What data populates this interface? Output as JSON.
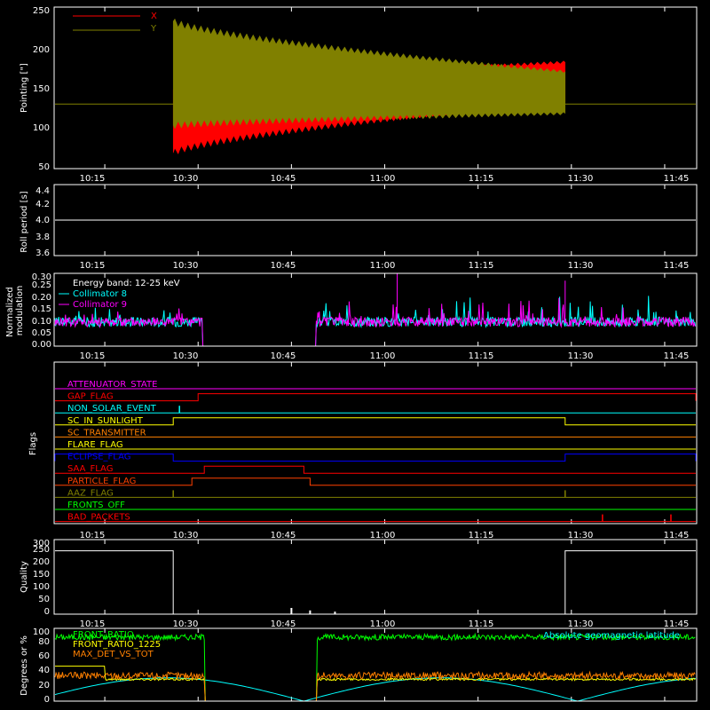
{
  "x_ticks": [
    "10:15",
    "10:30",
    "10:45",
    "11:00",
    "11:15",
    "11:30",
    "11:45"
  ],
  "chart_data": [
    {
      "id": "pointing",
      "type": "line",
      "ylabel": "Pointing [\"]",
      "ylim": [
        45,
        250
      ],
      "yticks": [
        "50",
        "100",
        "150",
        "200",
        "250"
      ],
      "xrange": [
        "10:07",
        "11:50"
      ],
      "series": [
        {
          "name": "X",
          "color": "#ff0000",
          "envelope_start_time": "10:26",
          "envelope_end_time": "11:29",
          "upper_start": 145,
          "upper_end": 180,
          "lower_start": 65,
          "lower_end": 130,
          "before_value": 127,
          "after_value": 127
        },
        {
          "name": "Y",
          "color": "#808000",
          "envelope_start_time": "10:26",
          "envelope_end_time": "11:29",
          "upper_start": 232,
          "upper_end": 168,
          "lower_start": 100,
          "lower_end": 115,
          "before_value": 127,
          "after_value": 127
        }
      ],
      "grid": false,
      "legend": "top-left"
    },
    {
      "id": "roll",
      "type": "line",
      "ylabel": "Roll period [s]",
      "ylim": [
        3.5,
        4.5
      ],
      "yticks": [
        "3.6",
        "3.8",
        "4.0",
        "4.2",
        "4.4"
      ],
      "series": [
        {
          "name": "",
          "color": "#ffffff",
          "value": 4.0
        }
      ]
    },
    {
      "id": "modulation",
      "type": "line",
      "ylabel": "Normalized modulation",
      "ylim": [
        0,
        0.3
      ],
      "yticks": [
        "0.00",
        "0.05",
        "0.10",
        "0.15",
        "0.20",
        "0.25",
        "0.30"
      ],
      "annotation": "Energy band: 12-25 keV",
      "series": [
        {
          "name": "Collimator 8",
          "color": "#00ffff",
          "baseline": 0.1,
          "gaps": [
            [
              "10:31",
              "10:49"
            ]
          ]
        },
        {
          "name": "Collimator 9",
          "color": "#ff00ff",
          "baseline": 0.1,
          "gaps": [
            [
              "10:31",
              "10:49"
            ]
          ]
        }
      ]
    },
    {
      "id": "flags",
      "type": "line",
      "ylabel": "Flags",
      "series": [
        {
          "name": "ATTENUATOR_STATE",
          "color": "#ff00ff",
          "on": []
        },
        {
          "name": "GAP_FLAG",
          "color": "#ff0000",
          "on": [
            [
              "10:30",
              "11:50"
            ]
          ]
        },
        {
          "name": "NON_SOLAR_EVENT",
          "color": "#00ffff",
          "spikes": [
            "10:27"
          ]
        },
        {
          "name": "SC_IN_SUNLIGHT",
          "color": "#ffff00",
          "on": [
            [
              "10:26",
              "11:29"
            ]
          ]
        },
        {
          "name": "SC_TRANSMITTER",
          "color": "#ff8000",
          "on": []
        },
        {
          "name": "FLARE_FLAG",
          "color": "#ffff00",
          "on": []
        },
        {
          "name": "ECLIPSE_FLAG",
          "color": "#0000ff",
          "on": [
            [
              "10:07",
              "10:26"
            ],
            [
              "11:29",
              "11:50"
            ]
          ]
        },
        {
          "name": "SAA_FLAG",
          "color": "#ff0000",
          "on": [
            [
              "10:31",
              "10:47"
            ]
          ]
        },
        {
          "name": "PARTICLE_FLAG",
          "color": "#ff4000",
          "on": [
            [
              "10:29",
              "10:48"
            ]
          ]
        },
        {
          "name": "AAZ_FLAG",
          "color": "#808000",
          "spikes": [
            "10:26",
            "11:29"
          ]
        },
        {
          "name": "FRONTS_OFF",
          "color": "#00ff00",
          "on": []
        },
        {
          "name": "BAD_PACKETS",
          "color": "#ff0000",
          "spikes": [
            "11:35",
            "11:46"
          ]
        }
      ]
    },
    {
      "id": "quality",
      "type": "line",
      "ylabel": "Quality",
      "ylim": [
        0,
        300
      ],
      "yticks": [
        "0",
        "50",
        "100",
        "150",
        "200",
        "250",
        "300"
      ],
      "series": [
        {
          "name": "",
          "color": "#ffffff",
          "segments": [
            [
              "10:07",
              "10:26",
              255
            ],
            [
              "11:29",
              "11:50",
              255
            ]
          ]
        }
      ]
    },
    {
      "id": "geo",
      "type": "line",
      "ylabel": "Degrees or %",
      "ylim": [
        0,
        100
      ],
      "yticks": [
        "0",
        "10",
        "20",
        "30",
        "40",
        "50",
        "60",
        "70",
        "80",
        "90",
        "100"
      ],
      "series": [
        {
          "name": "FRONT_RATIO",
          "color": "#00ff00",
          "level": 88,
          "gaps": [
            [
              "10:31",
              "10:49"
            ]
          ]
        },
        {
          "name": "FRONT_RATIO_1225",
          "color": "#ffff00",
          "level": 30
        },
        {
          "name": "MAX_DET_VS_TOT",
          "color": "#ff8000",
          "level": 35
        },
        {
          "name": "Absolute geomagnetic latitude",
          "color": "#00ffff"
        }
      ]
    }
  ]
}
